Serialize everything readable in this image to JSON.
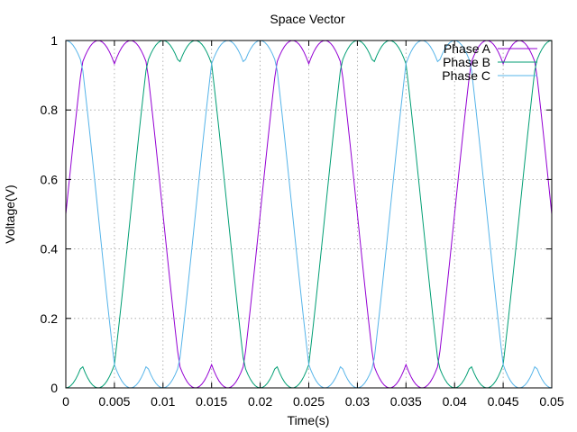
{
  "chart_data": {
    "type": "line",
    "title": "Space Vector",
    "xlabel": "Time(s)",
    "ylabel": "Voltage(V)",
    "xlim": [
      0,
      0.05
    ],
    "ylim": [
      0,
      1
    ],
    "xticks": [
      "0",
      "0.005",
      "0.01",
      "0.015",
      "0.02",
      "0.025",
      "0.03",
      "0.035",
      "0.04",
      "0.045",
      "0.05"
    ],
    "yticks": [
      "0",
      "0.2",
      "0.4",
      "0.6",
      "0.8",
      "1"
    ],
    "grid": true,
    "legend_position": "top-right",
    "frequency_hz": 50,
    "series": [
      {
        "name": "Phase A",
        "color": "#9400d3",
        "phase_deg": 0
      },
      {
        "name": "Phase B",
        "color": "#009e73",
        "phase_deg": -120
      },
      {
        "name": "Phase C",
        "color": "#56b4e9",
        "phase_deg": 120
      }
    ]
  }
}
